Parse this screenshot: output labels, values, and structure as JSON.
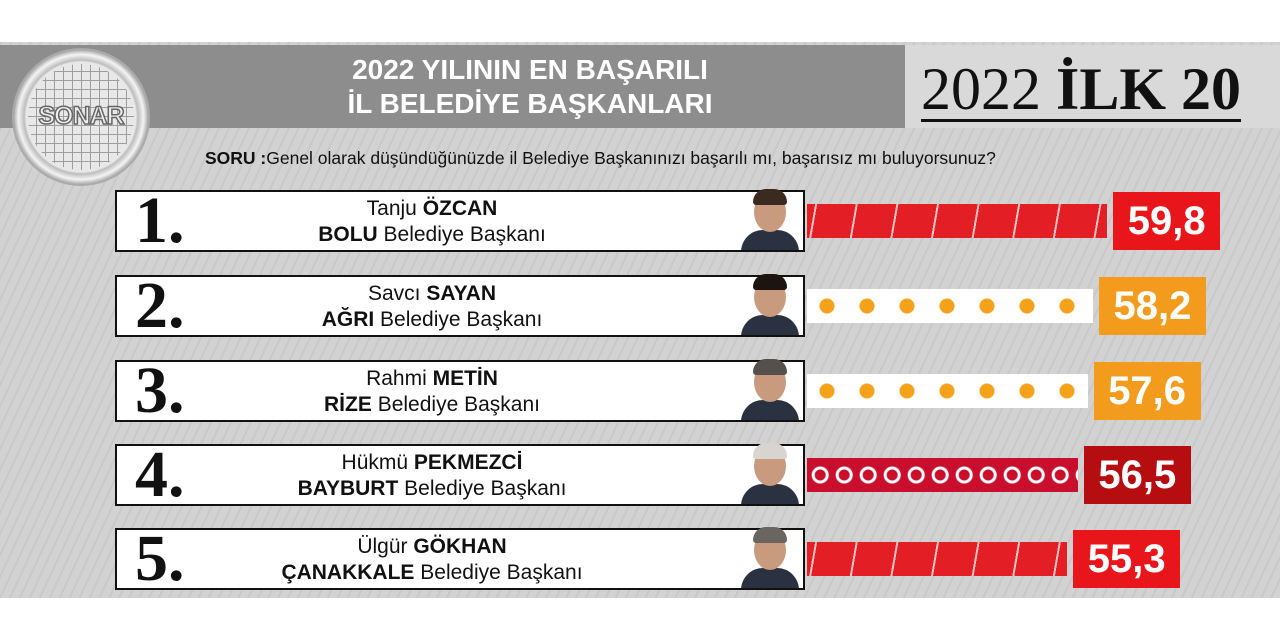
{
  "header": {
    "title_line1": "2022 YILININ EN BAŞARILI",
    "title_line2": "İL BELEDİYE BAŞKANLARI",
    "badge_year": "2022",
    "badge_text": "İLK 20",
    "logo_text": "SONAR"
  },
  "question": {
    "label": "SORU :",
    "text": "Genel olarak düşündüğünüzde il Belediye Başkanınızı başarılı mı, başarısız mı buluyorsunuz?"
  },
  "chart_data": {
    "type": "bar",
    "orientation": "horizontal",
    "categories": [
      "Tanju ÖZCAN",
      "Savcı SAYAN",
      "Rahmi METİN",
      "Hükmü PEKMEZCİ",
      "Ülgür GÖKHAN"
    ],
    "values": [
      59.8,
      58.2,
      57.6,
      56.5,
      55.3
    ],
    "rows": [
      {
        "rank": "1.",
        "first": "Tanju",
        "last": "ÖZCAN",
        "city": "BOLU",
        "role": "Belediye Başkanı",
        "value": 59.8,
        "value_label": "59,8",
        "bar_style": "chp",
        "value_color": "#e8161b",
        "hair": "#3a2a20"
      },
      {
        "rank": "2.",
        "first": "Savcı",
        "last": "SAYAN",
        "city": "AĞRI",
        "role": "Belediye Başkanı",
        "value": 58.2,
        "value_label": "58,2",
        "bar_style": "akp",
        "value_color": "#f39b1c",
        "hair": "#1c1410"
      },
      {
        "rank": "3.",
        "first": "Rahmi",
        "last": "METİN",
        "city": "RİZE",
        "role": "Belediye Başkanı",
        "value": 57.6,
        "value_label": "57,6",
        "bar_style": "akp",
        "value_color": "#f39b1c",
        "hair": "#55504c"
      },
      {
        "rank": "4.",
        "first": "Hükmü",
        "last": "PEKMEZCİ",
        "city": "BAYBURT",
        "role": "Belediye Başkanı",
        "value": 56.5,
        "value_label": "56,5",
        "bar_style": "mhp",
        "value_color": "#b50d10",
        "hair": "#d8d4d0"
      },
      {
        "rank": "5.",
        "first": "Ülgür",
        "last": "GÖKHAN",
        "city": "ÇANAKKALE",
        "role": "Belediye Başkanı",
        "value": 55.3,
        "value_label": "55,3",
        "bar_style": "chp",
        "value_color": "#e8161b",
        "hair": "#6a6560"
      }
    ]
  }
}
